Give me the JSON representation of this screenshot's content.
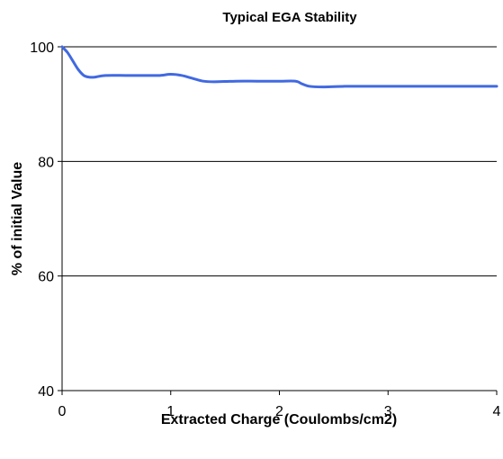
{
  "chart_data": {
    "type": "line",
    "title": "Typical EGA Stability",
    "xlabel": "Extracted Charge (Coulombs/cm2)",
    "ylabel": "% of initial Value",
    "xlim": [
      0,
      4
    ],
    "ylim": [
      40,
      100
    ],
    "x_ticks": [
      "0",
      "1",
      "2",
      "3",
      "4"
    ],
    "y_ticks": [
      "40",
      "60",
      "80",
      "100"
    ],
    "grid": "horizontal",
    "legend": "none",
    "series": [
      {
        "color": "#4169E1",
        "points": [
          [
            0,
            100
          ],
          [
            0.05,
            99.0
          ],
          [
            0.1,
            97.5
          ],
          [
            0.15,
            96.0
          ],
          [
            0.2,
            95.0
          ],
          [
            0.25,
            94.7
          ],
          [
            0.3,
            94.7
          ],
          [
            0.4,
            95.0
          ],
          [
            0.6,
            95.0
          ],
          [
            0.8,
            95.0
          ],
          [
            0.9,
            95.0
          ],
          [
            1.0,
            95.2
          ],
          [
            1.1,
            95.0
          ],
          [
            1.2,
            94.5
          ],
          [
            1.3,
            94.0
          ],
          [
            1.4,
            93.9
          ],
          [
            1.6,
            94.0
          ],
          [
            1.8,
            94.0
          ],
          [
            2.0,
            94.0
          ],
          [
            2.15,
            94.0
          ],
          [
            2.2,
            93.6
          ],
          [
            2.28,
            93.1
          ],
          [
            2.4,
            93.0
          ],
          [
            2.6,
            93.1
          ],
          [
            3.0,
            93.1
          ],
          [
            3.5,
            93.1
          ],
          [
            4.0,
            93.1
          ]
        ]
      }
    ]
  }
}
